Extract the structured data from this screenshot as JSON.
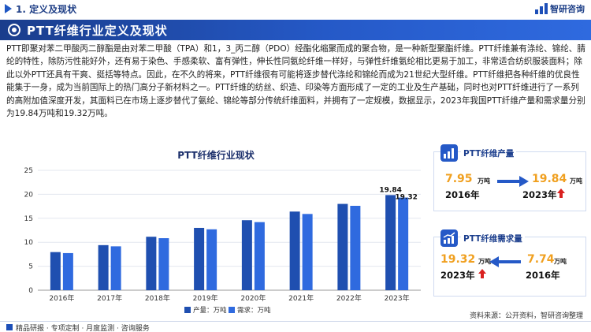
{
  "header": {
    "section": "1. 定义及现状",
    "logo_text": "智研咨询"
  },
  "banner": {
    "title": "PTT纤维行业定义及现状"
  },
  "paragraph": "PTT即聚对苯二甲酸丙二醇酯是由对苯二甲酸（TPA）和1，3_丙二醇（PDO）经酯化缩聚而成的聚合物，是一种新型聚酯纤维。PTT纤维兼有涤纶、锦纶、腈纶的特性，除防污性能好外，还有易于染色、手感柔软、富有弹性，伸长性同氨纶纤维一样好，与弹性纤维氨纶相比更易于加工，非常适合纺织服装面料；除此以外PTT还具有干爽、挺括等特点。因此，在不久的将来，PTT纤维很有可能将逐步替代涤纶和锦纶而成为21世纪大型纤维。PTT纤维把各种纤维的优良性能集于一身，成为当前国际上的热门高分子新材料之一。PTT纤维的纺丝、织造、印染等方面形成了一定的工业及生产基础，同时也对PTT纤维进行了一系列的高附加值深度开发，其面料已在市场上逐步替代了氨纶、锦纶等部分传统纤维面料，并拥有了一定规模，数据显示，2023年我国PTT纤维产量和需求量分别为19.84万吨和19.32万吨。",
  "chart_data": {
    "type": "bar",
    "title": "PTT纤维行业现状",
    "categories": [
      "2016年",
      "2017年",
      "2018年",
      "2019年",
      "2020年",
      "2021年",
      "2022年",
      "2023年"
    ],
    "series": [
      {
        "name": "产量：万吨",
        "values": [
          7.95,
          9.4,
          11.15,
          13.0,
          14.6,
          16.4,
          18.0,
          19.84
        ],
        "color": "#1f4fb0"
      },
      {
        "name": "需求：万吨",
        "values": [
          7.74,
          9.15,
          10.85,
          12.7,
          14.2,
          15.9,
          17.6,
          19.32
        ],
        "color": "#2f6adf"
      }
    ],
    "data_labels": {
      "last_production": "19.84",
      "last_demand": "19.32"
    },
    "yticks": [
      "0",
      "5",
      "10",
      "15",
      "20",
      "25"
    ],
    "ylim": [
      0,
      25
    ],
    "grid": true,
    "legend": "bottom"
  },
  "production_card": {
    "title": "PTT纤维产量",
    "left_value": "7.95",
    "left_unit": "万吨",
    "left_year": "2016年",
    "right_value": "19.84",
    "right_unit": "万吨",
    "right_year": "2023年"
  },
  "demand_card": {
    "title": "PTT纤维需求量",
    "left_value": "19.32",
    "left_unit": "万吨",
    "left_year": "2023年",
    "right_value": "7.74",
    "right_unit": "万吨",
    "right_year": "2016年"
  },
  "colors": {
    "brand_blue": "#1a3d8c",
    "accent_orange": "#f0a020",
    "up_red": "#d9201f"
  },
  "source": "资料来源：公开资料，智研咨询整理",
  "footer": {
    "brand": "精品研报 · 专项定制 · 月度监测 · 咨询服务"
  }
}
